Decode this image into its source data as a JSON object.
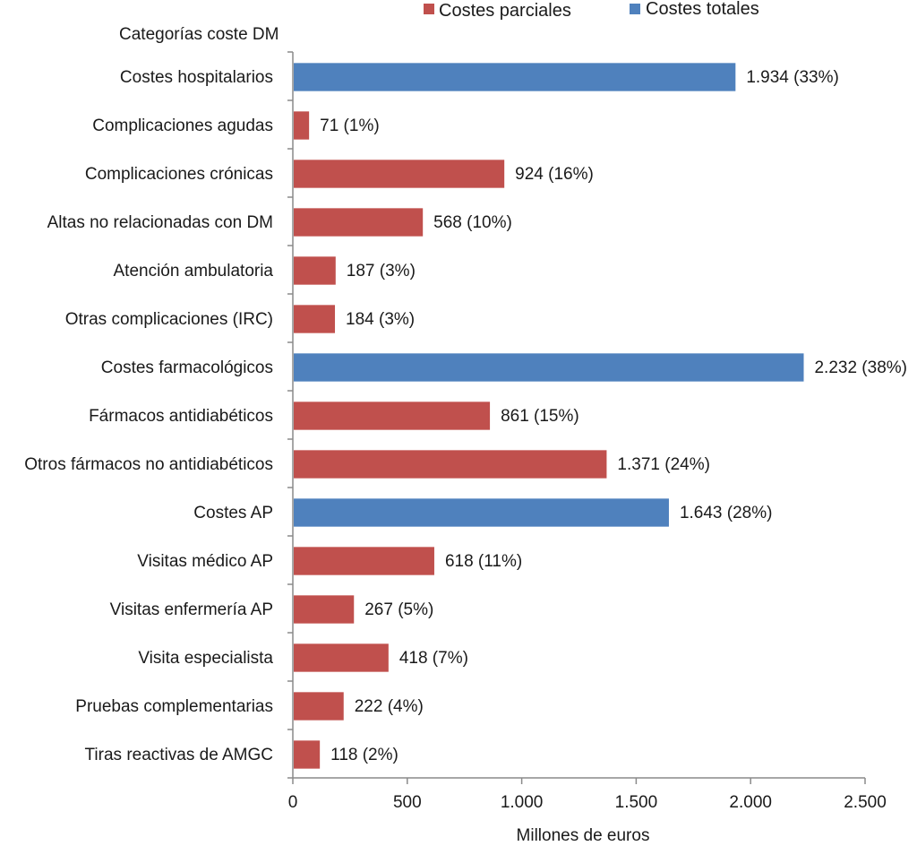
{
  "chart_data": {
    "type": "bar",
    "orientation": "horizontal",
    "title": "",
    "category_axis_title": "Categorías  coste DM",
    "xlabel": "Millones de euros",
    "ylabel": "Categorías  coste DM",
    "xlim": [
      0,
      2500
    ],
    "xticks": [
      0,
      500,
      1000,
      1500,
      2000,
      2500
    ],
    "xtick_labels": [
      "0",
      "500",
      "1.000",
      "1.500",
      "2.000",
      "2.500"
    ],
    "grid": false,
    "legend_position": "top",
    "legend": [
      {
        "name": "Costes parciales",
        "color": "#c0504d"
      },
      {
        "name": "Costes totales",
        "color": "#4f81bd"
      }
    ],
    "categories": [
      "Costes hospitalarios",
      "Complicaciones agudas",
      "Complicaciones crónicas",
      "Altas no relacionadas con DM",
      "Atención ambulatoria",
      "Otras complicaciones (IRC)",
      "Costes farmacológicos",
      "Fármacos antidiabéticos",
      "Otros fármacos no antidiabéticos",
      "Costes AP",
      "Visitas médico AP",
      "Visitas enfermería AP",
      "Visita especialista",
      "Pruebas complementarias",
      "Tiras reactivas de AMGC"
    ],
    "values": [
      1934,
      71,
      924,
      568,
      187,
      184,
      2232,
      861,
      1371,
      1643,
      618,
      267,
      418,
      222,
      118
    ],
    "series_membership": [
      "Costes totales",
      "Costes parciales",
      "Costes parciales",
      "Costes parciales",
      "Costes parciales",
      "Costes parciales",
      "Costes totales",
      "Costes parciales",
      "Costes parciales",
      "Costes totales",
      "Costes parciales",
      "Costes parciales",
      "Costes parciales",
      "Costes parciales",
      "Costes parciales"
    ],
    "data_labels": [
      "1.934 (33%)",
      "71 (1%)",
      "924 (16%)",
      "568 (10%)",
      "187 (3%)",
      "184 (3%)",
      "2.232 (38%)",
      "861 (15%)",
      "1.371 (24%)",
      "1.643 (28%)",
      "618 (11%)",
      "267 (5%)",
      "418 (7%)",
      "222 (4%)",
      "118 (2%)"
    ],
    "percentages": [
      33,
      1,
      16,
      10,
      3,
      3,
      38,
      15,
      24,
      28,
      11,
      5,
      7,
      4,
      2
    ]
  }
}
